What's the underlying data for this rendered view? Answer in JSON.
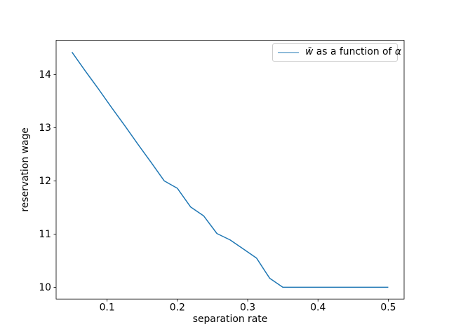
{
  "chart_data": {
    "type": "line",
    "title": "",
    "xlabel": "separation rate",
    "ylabel": "reservation wage",
    "xlim": [
      0.02749,
      0.52251
    ],
    "ylim": [
      9.7789,
      14.6411
    ],
    "grid": false,
    "x_ticks": [
      0.1,
      0.2,
      0.3,
      0.4,
      0.5
    ],
    "x_tick_labels": [
      "0.1",
      "0.2",
      "0.3",
      "0.4",
      "0.5"
    ],
    "y_ticks": [
      10,
      11,
      12,
      13,
      14
    ],
    "y_tick_labels": [
      "10",
      "11",
      "12",
      "13",
      "14"
    ],
    "legend": {
      "position": "upper right",
      "label_full": "w̄ as a function of α",
      "label_math_w": "w̄",
      "label_text": " as a function of ",
      "label_math_alpha": "α"
    },
    "series": [
      {
        "name": "w̄ as a function of α",
        "color": "#1f77b4",
        "line_width": 1.5,
        "x": [
          0.05,
          0.06875,
          0.0875,
          0.10625,
          0.125,
          0.14375,
          0.1625,
          0.18125,
          0.2,
          0.21875,
          0.2375,
          0.25625,
          0.275,
          0.29375,
          0.3125,
          0.33125,
          0.35,
          0.36875,
          0.3875,
          0.40625,
          0.425,
          0.44375,
          0.4625,
          0.48125,
          0.5
        ],
        "y": [
          14.42,
          14.07,
          13.73,
          13.38,
          13.04,
          12.69,
          12.35,
          12.0,
          11.86,
          11.51,
          11.34,
          11.01,
          10.89,
          10.72,
          10.55,
          10.17,
          10.0,
          10.0,
          10.0,
          10.0,
          10.0,
          10.0,
          10.0,
          10.0,
          10.0
        ]
      }
    ],
    "colors": {
      "background": "#ffffff",
      "spine": "#000000",
      "tick_label": "#000000",
      "legend_border": "#cccccc"
    }
  }
}
